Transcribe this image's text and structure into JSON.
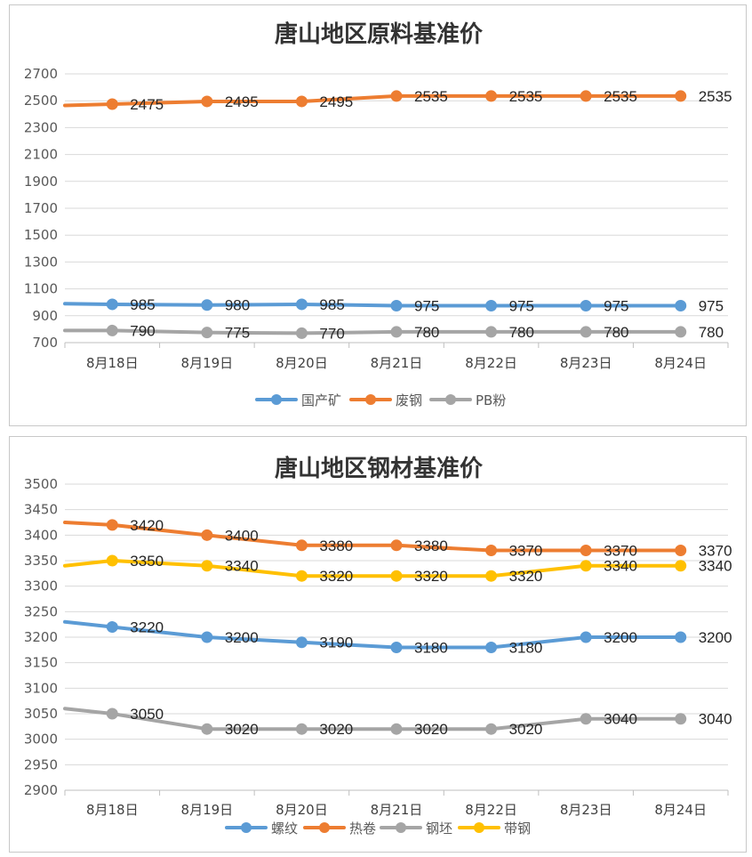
{
  "chart_data": [
    {
      "type": "line",
      "title": "唐山地区原料基准价",
      "categories": [
        "8月18日",
        "8月19日",
        "8月20日",
        "8月21日",
        "8月22日",
        "8月23日",
        "8月24日"
      ],
      "ylim": [
        700,
        2700
      ],
      "yticks": [
        700,
        900,
        1100,
        1300,
        1500,
        1700,
        1900,
        2100,
        2300,
        2500,
        2700
      ],
      "grid": true,
      "legend_position": "bottom",
      "series": [
        {
          "name": "国产矿",
          "color": "#5B9BD5",
          "start": 990,
          "values": [
            985,
            980,
            985,
            975,
            975,
            975,
            975
          ]
        },
        {
          "name": "废钢",
          "color": "#ED7D31",
          "start": 2465,
          "values": [
            2475,
            2495,
            2495,
            2535,
            2535,
            2535,
            2535
          ]
        },
        {
          "name": "PB粉",
          "color": "#A5A5A5",
          "start": 790,
          "values": [
            790,
            775,
            770,
            780,
            780,
            780,
            780
          ]
        }
      ]
    },
    {
      "type": "line",
      "title": "唐山地区钢材基准价",
      "categories": [
        "8月18日",
        "8月19日",
        "8月20日",
        "8月21日",
        "8月22日",
        "8月23日",
        "8月24日"
      ],
      "ylim": [
        2900,
        3500
      ],
      "yticks": [
        2900,
        2950,
        3000,
        3050,
        3100,
        3150,
        3200,
        3250,
        3300,
        3350,
        3400,
        3450,
        3500
      ],
      "grid": true,
      "legend_position": "bottom",
      "series": [
        {
          "name": "螺纹",
          "color": "#5B9BD5",
          "start": 3230,
          "values": [
            3220,
            3200,
            3190,
            3180,
            3180,
            3200,
            3200
          ]
        },
        {
          "name": "热卷",
          "color": "#ED7D31",
          "start": 3425,
          "values": [
            3420,
            3400,
            3380,
            3380,
            3370,
            3370,
            3370
          ]
        },
        {
          "name": "钢坯",
          "color": "#A5A5A5",
          "start": 3060,
          "values": [
            3050,
            3020,
            3020,
            3020,
            3020,
            3040,
            3040
          ]
        },
        {
          "name": "带钢",
          "color": "#FFC000",
          "start": 3340,
          "values": [
            3350,
            3340,
            3320,
            3320,
            3320,
            3340,
            3340
          ]
        }
      ]
    }
  ]
}
